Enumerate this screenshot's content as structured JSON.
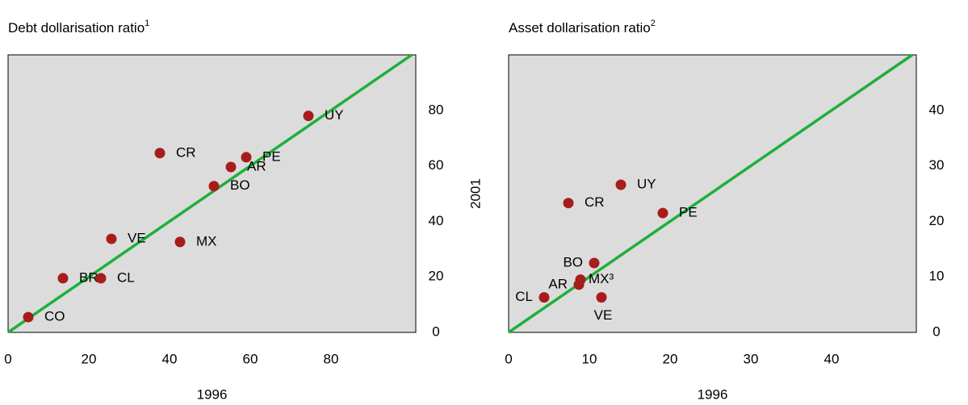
{
  "chart_data": [
    {
      "type": "scatter",
      "title": "Debt dollarisation ratio",
      "title_note": "1",
      "xlabel": "1996",
      "ylabel": "2001",
      "labels": [
        "CO",
        "BR",
        "CL",
        "VE",
        "MX",
        "BO",
        "AR",
        "PE",
        "CR",
        "UY"
      ],
      "x": [
        5,
        13.6,
        23,
        25.6,
        42.6,
        51,
        55.2,
        59,
        37.6,
        74.4
      ],
      "y": [
        5.5,
        19.5,
        19.5,
        33.7,
        32.6,
        52.7,
        59.6,
        63.1,
        64.6,
        78
      ],
      "color": "#a81c1c",
      "line_color": "#1db03a",
      "xlim": [
        0,
        101
      ],
      "ylim": [
        0,
        100
      ],
      "xticks": [
        0,
        20,
        40,
        60,
        80
      ],
      "yticks": [
        0,
        20,
        40,
        60,
        80
      ]
    },
    {
      "type": "scatter",
      "title": "Asset dollarisation ratio",
      "title_note": "2",
      "xlabel": "1996",
      "ylabel": "2001",
      "labels": [
        "CL",
        "AR",
        "MX³",
        "BO",
        "VE",
        "CR",
        "UY",
        "PE"
      ],
      "x": [
        4.4,
        8.7,
        8.9,
        10.6,
        11.5,
        7.4,
        13.9,
        19.1
      ],
      "y": [
        6.3,
        8.6,
        9.5,
        12.5,
        6.3,
        23.3,
        26.6,
        21.5
      ],
      "color": "#a81c1c",
      "line_color": "#1db03a",
      "xlim": [
        0,
        50.5
      ],
      "ylim": [
        0,
        50
      ],
      "xticks": [
        0,
        10,
        20,
        30,
        40
      ],
      "yticks": [
        0,
        10,
        20,
        30,
        40
      ]
    }
  ]
}
